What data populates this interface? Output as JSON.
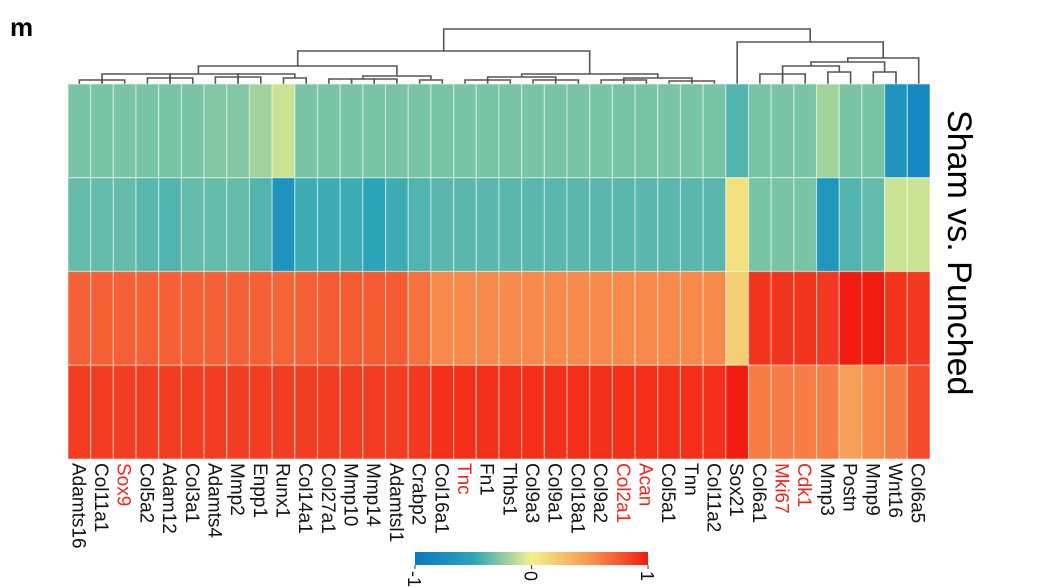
{
  "panel_letter": "m",
  "chart_data": {
    "type": "heatmap",
    "title": "",
    "side_label": "Sham vs. Punched",
    "rows": 4,
    "columns": [
      {
        "gene": "Adamts16",
        "highlight": false,
        "values": [
          -0.3,
          -0.35,
          0.72,
          0.86
        ]
      },
      {
        "gene": "Col11a1",
        "highlight": false,
        "values": [
          -0.3,
          -0.35,
          0.72,
          0.86
        ]
      },
      {
        "gene": "Sox9",
        "highlight": true,
        "values": [
          -0.3,
          -0.35,
          0.72,
          0.86
        ]
      },
      {
        "gene": "Col5a2",
        "highlight": false,
        "values": [
          -0.3,
          -0.38,
          0.72,
          0.86
        ]
      },
      {
        "gene": "Adam12",
        "highlight": false,
        "values": [
          -0.3,
          -0.4,
          0.72,
          0.86
        ]
      },
      {
        "gene": "Col3a1",
        "highlight": false,
        "values": [
          -0.3,
          -0.35,
          0.72,
          0.86
        ]
      },
      {
        "gene": "Adamts4",
        "highlight": false,
        "values": [
          -0.28,
          -0.35,
          0.72,
          0.86
        ]
      },
      {
        "gene": "Mmp2",
        "highlight": false,
        "values": [
          -0.28,
          -0.35,
          0.72,
          0.86
        ]
      },
      {
        "gene": "Enpp1",
        "highlight": false,
        "values": [
          -0.2,
          -0.4,
          0.72,
          0.86
        ]
      },
      {
        "gene": "Runx1",
        "highlight": false,
        "values": [
          -0.1,
          -0.7,
          0.7,
          0.86
        ]
      },
      {
        "gene": "Col14a1",
        "highlight": false,
        "values": [
          -0.3,
          -0.45,
          0.72,
          0.86
        ]
      },
      {
        "gene": "Col27a1",
        "highlight": false,
        "values": [
          -0.3,
          -0.45,
          0.74,
          0.86
        ]
      },
      {
        "gene": "Mmp10",
        "highlight": false,
        "values": [
          -0.3,
          -0.45,
          0.74,
          0.86
        ]
      },
      {
        "gene": "Mmp14",
        "highlight": false,
        "values": [
          -0.3,
          -0.5,
          0.74,
          0.86
        ]
      },
      {
        "gene": "Adamtsl1",
        "highlight": false,
        "values": [
          -0.3,
          -0.45,
          0.74,
          0.86
        ]
      },
      {
        "gene": "Crabp2",
        "highlight": false,
        "values": [
          -0.3,
          -0.4,
          0.65,
          0.88
        ]
      },
      {
        "gene": "Col16a1",
        "highlight": false,
        "values": [
          -0.3,
          -0.38,
          0.55,
          0.92
        ]
      },
      {
        "gene": "Tnc",
        "highlight": true,
        "values": [
          -0.3,
          -0.38,
          0.55,
          0.92
        ]
      },
      {
        "gene": "Fn1",
        "highlight": false,
        "values": [
          -0.3,
          -0.38,
          0.55,
          0.92
        ]
      },
      {
        "gene": "Thbs1",
        "highlight": false,
        "values": [
          -0.3,
          -0.38,
          0.55,
          0.92
        ]
      },
      {
        "gene": "Col9a3",
        "highlight": false,
        "values": [
          -0.3,
          -0.38,
          0.55,
          0.92
        ]
      },
      {
        "gene": "Col9a1",
        "highlight": false,
        "values": [
          -0.3,
          -0.38,
          0.55,
          0.92
        ]
      },
      {
        "gene": "Col18a1",
        "highlight": false,
        "values": [
          -0.3,
          -0.38,
          0.55,
          0.92
        ]
      },
      {
        "gene": "Col9a2",
        "highlight": false,
        "values": [
          -0.3,
          -0.38,
          0.55,
          0.92
        ]
      },
      {
        "gene": "Col2a1",
        "highlight": true,
        "values": [
          -0.3,
          -0.38,
          0.55,
          0.92
        ]
      },
      {
        "gene": "Acan",
        "highlight": true,
        "values": [
          -0.3,
          -0.38,
          0.55,
          0.92
        ]
      },
      {
        "gene": "Col5a1",
        "highlight": false,
        "values": [
          -0.3,
          -0.38,
          0.55,
          0.92
        ]
      },
      {
        "gene": "Tnn",
        "highlight": false,
        "values": [
          -0.3,
          -0.38,
          0.55,
          0.92
        ]
      },
      {
        "gene": "Col11a2",
        "highlight": false,
        "values": [
          -0.3,
          -0.38,
          0.55,
          0.92
        ]
      },
      {
        "gene": "Sox21",
        "highlight": false,
        "values": [
          -0.4,
          0.1,
          0.2,
          1.0
        ]
      },
      {
        "gene": "Col6a1",
        "highlight": false,
        "values": [
          -0.3,
          -0.3,
          0.9,
          0.6
        ]
      },
      {
        "gene": "Mki67",
        "highlight": true,
        "values": [
          -0.3,
          -0.3,
          0.9,
          0.6
        ]
      },
      {
        "gene": "Cdk1",
        "highlight": true,
        "values": [
          -0.3,
          -0.3,
          0.9,
          0.6
        ]
      },
      {
        "gene": "Mmp3",
        "highlight": false,
        "values": [
          -0.2,
          -0.65,
          0.88,
          0.6
        ]
      },
      {
        "gene": "Postn",
        "highlight": false,
        "values": [
          -0.3,
          -0.4,
          1.0,
          0.45
        ]
      },
      {
        "gene": "Mmp9",
        "highlight": false,
        "values": [
          -0.3,
          -0.35,
          1.0,
          0.55
        ]
      },
      {
        "gene": "Wnt16",
        "highlight": false,
        "values": [
          -0.7,
          -0.1,
          0.9,
          0.6
        ]
      },
      {
        "gene": "Col6a5",
        "highlight": false,
        "values": [
          -0.8,
          -0.1,
          0.88,
          0.8
        ]
      }
    ],
    "color_scale": {
      "min": -1,
      "max": 1,
      "tick_labels": [
        "-1",
        "0",
        "1"
      ],
      "tick_values": [
        -1,
        0,
        1
      ],
      "stops": [
        "#0a77c6",
        "#2aa5b7",
        "#f2f28c",
        "#f79650",
        "#f21b10"
      ]
    },
    "highlight_color": "#e8271e",
    "label_color": "#111111",
    "dendrogram": "column clustering tree drawn above the heatmap"
  }
}
